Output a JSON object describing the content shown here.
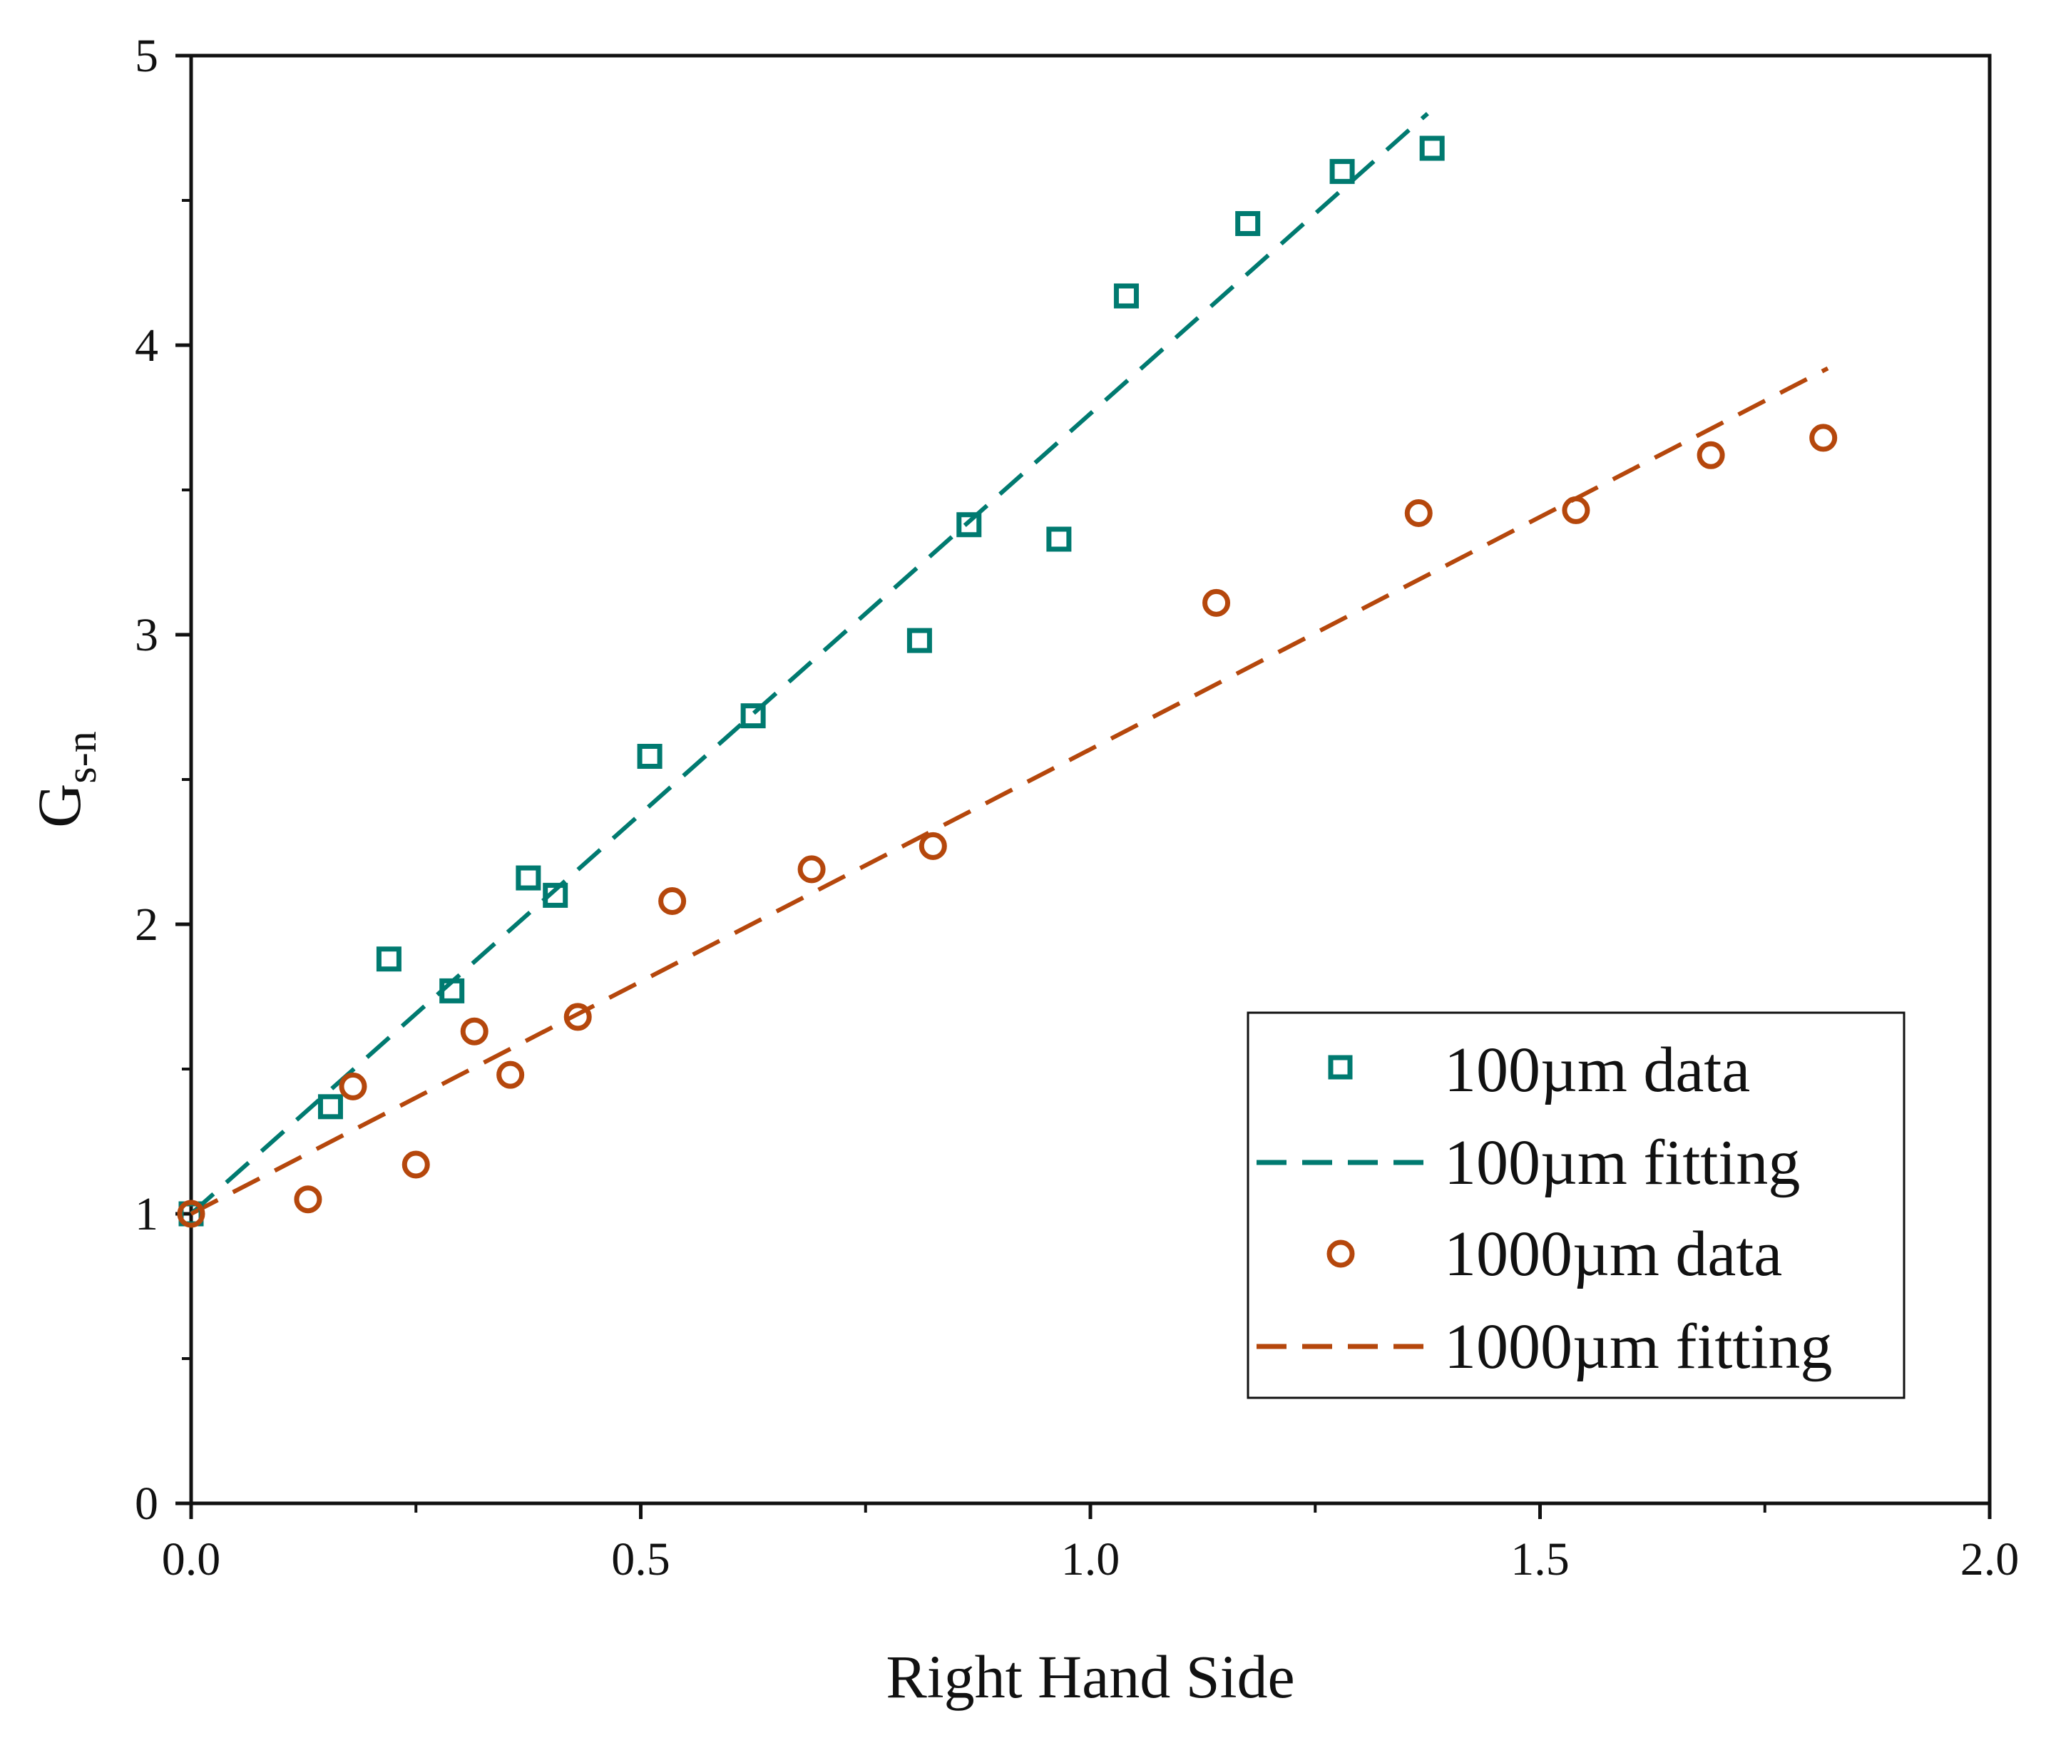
{
  "colors": {
    "series_100um": "#007a70",
    "series_1000um": "#b5470c",
    "axis": "#111111"
  },
  "chart_data": {
    "type": "scatter",
    "xlabel": "Right Hand Side",
    "ylabel": {
      "main": "G",
      "subscript": "s-n"
    },
    "xlim": [
      0,
      2.0
    ],
    "ylim": [
      0,
      5
    ],
    "x_ticks": [
      0.0,
      0.5,
      1.0,
      1.5,
      2.0
    ],
    "x_tick_labels": [
      "0.0",
      "0.5",
      "1.0",
      "1.5",
      "2.0"
    ],
    "y_ticks": [
      0,
      1,
      2,
      3,
      4,
      5
    ],
    "y_tick_labels": [
      "0",
      "1",
      "2",
      "3",
      "4",
      "5"
    ],
    "x_minor_ticks": [
      0.25,
      0.75,
      1.25,
      1.75
    ],
    "y_minor_ticks": [
      0.5,
      1.5,
      2.5,
      3.5,
      4.5
    ],
    "grid": false,
    "legend_position": "bottom-right",
    "series": [
      {
        "name": "100µm data",
        "kind": "scatter",
        "marker": "square",
        "color": "#007a70",
        "x": [
          0.0,
          0.155,
          0.22,
          0.29,
          0.375,
          0.405,
          0.51,
          0.625,
          0.81,
          0.865,
          0.965,
          1.04,
          1.175,
          1.28,
          1.38
        ],
        "y": [
          1.0,
          1.37,
          1.88,
          1.77,
          2.16,
          2.1,
          2.58,
          2.72,
          2.98,
          3.38,
          3.33,
          4.17,
          4.42,
          4.6,
          4.68
        ]
      },
      {
        "name": "100µm fitting",
        "kind": "line",
        "dash": true,
        "color": "#007a70",
        "x": [
          0.0,
          1.375
        ],
        "y": [
          1.0,
          4.8
        ]
      },
      {
        "name": "1000µm data",
        "kind": "scatter",
        "marker": "circle",
        "color": "#b5470c",
        "x": [
          0.0,
          0.13,
          0.18,
          0.25,
          0.315,
          0.355,
          0.43,
          0.535,
          0.69,
          0.825,
          1.14,
          1.365,
          1.54,
          1.69,
          1.815
        ],
        "y": [
          1.0,
          1.05,
          1.44,
          1.17,
          1.63,
          1.48,
          1.68,
          2.08,
          2.19,
          2.27,
          3.11,
          3.42,
          3.43,
          3.62,
          3.68
        ]
      },
      {
        "name": "1000µm fitting",
        "kind": "line",
        "dash": true,
        "color": "#b5470c",
        "x": [
          0.0,
          1.82
        ],
        "y": [
          1.0,
          3.92
        ]
      }
    ]
  }
}
